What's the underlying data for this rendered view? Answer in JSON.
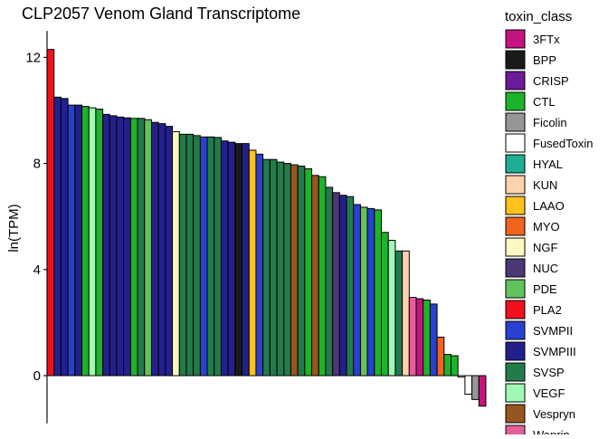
{
  "chart_data": {
    "type": "bar",
    "title": "CLP2057 Venom Gland Transcriptome",
    "xlabel": "",
    "ylabel": "ln(TPM)",
    "ylim": [
      -1.8,
      13
    ],
    "yticks": [
      0,
      4,
      8,
      12
    ],
    "grid": false,
    "legend": {
      "title": "toxin_class",
      "placement": "right",
      "entries": [
        {
          "label": "3FTx",
          "color": "#C6127F"
        },
        {
          "label": "BPP",
          "color": "#1A1A1A"
        },
        {
          "label": "CRISP",
          "color": "#6A1B9A"
        },
        {
          "label": "CTL",
          "color": "#1DB32B"
        },
        {
          "label": "Ficolin",
          "color": "#969696"
        },
        {
          "label": "FusedToxin",
          "color": "#FFFFFF"
        },
        {
          "label": "HYAL",
          "color": "#1FAE93"
        },
        {
          "label": "KUN",
          "color": "#FFD2AE"
        },
        {
          "label": "LAAO",
          "color": "#FFC21A"
        },
        {
          "label": "MYO",
          "color": "#F0641C"
        },
        {
          "label": "NGF",
          "color": "#FFF8C2"
        },
        {
          "label": "NUC",
          "color": "#4B3875"
        },
        {
          "label": "PDE",
          "color": "#61C45B"
        },
        {
          "label": "PLA2",
          "color": "#F0101E"
        },
        {
          "label": "SVMPII",
          "color": "#2741D1"
        },
        {
          "label": "SVMPIII",
          "color": "#23208E"
        },
        {
          "label": "SVSP",
          "color": "#237B4C"
        },
        {
          "label": "VEGF",
          "color": "#A1F7B5"
        },
        {
          "label": "Vespryn",
          "color": "#97561F"
        },
        {
          "label": "Waprin",
          "color": "#E45F9D"
        }
      ]
    },
    "series": [
      {
        "values": [
          {
            "class": "PLA2",
            "value": 12.3
          },
          {
            "class": "SVMPIII",
            "value": 10.5
          },
          {
            "class": "SVMPIII",
            "value": 10.45
          },
          {
            "class": "SVMPII",
            "value": 10.2
          },
          {
            "class": "SVMPIII",
            "value": 10.2
          },
          {
            "class": "CTL",
            "value": 10.15
          },
          {
            "class": "VEGF",
            "value": 10.1
          },
          {
            "class": "CTL",
            "value": 10.05
          },
          {
            "class": "SVMPIII",
            "value": 9.85
          },
          {
            "class": "SVMPIII",
            "value": 9.8
          },
          {
            "class": "SVMPIII",
            "value": 9.75
          },
          {
            "class": "SVMPIII",
            "value": 9.72
          },
          {
            "class": "CTL",
            "value": 9.7
          },
          {
            "class": "SVSP",
            "value": 9.7
          },
          {
            "class": "PDE",
            "value": 9.65
          },
          {
            "class": "SVMPIII",
            "value": 9.55
          },
          {
            "class": "SVMPIII",
            "value": 9.5
          },
          {
            "class": "SVMPIII",
            "value": 9.4
          },
          {
            "class": "NGF",
            "value": 9.2
          },
          {
            "class": "SVSP",
            "value": 9.1
          },
          {
            "class": "SVSP",
            "value": 9.1
          },
          {
            "class": "SVSP",
            "value": 9.05
          },
          {
            "class": "SVMPII",
            "value": 9.0
          },
          {
            "class": "SVSP",
            "value": 9.0
          },
          {
            "class": "SVSP",
            "value": 8.98
          },
          {
            "class": "SVMPIII",
            "value": 8.85
          },
          {
            "class": "SVMPIII",
            "value": 8.8
          },
          {
            "class": "BPP",
            "value": 8.75
          },
          {
            "class": "SVMPIII",
            "value": 8.75
          },
          {
            "class": "LAAO",
            "value": 8.5
          },
          {
            "class": "SVMPII",
            "value": 8.35
          },
          {
            "class": "SVSP",
            "value": 8.15
          },
          {
            "class": "SVSP",
            "value": 8.15
          },
          {
            "class": "SVSP",
            "value": 8.05
          },
          {
            "class": "SVSP",
            "value": 8.0
          },
          {
            "class": "Vespryn",
            "value": 7.95
          },
          {
            "class": "SVSP",
            "value": 7.9
          },
          {
            "class": "CTL",
            "value": 7.8
          },
          {
            "class": "Vespryn",
            "value": 7.55
          },
          {
            "class": "CTL",
            "value": 7.5
          },
          {
            "class": "SVSP",
            "value": 7.1
          },
          {
            "class": "NUC",
            "value": 6.9
          },
          {
            "class": "SVMPIII",
            "value": 6.8
          },
          {
            "class": "SVSP",
            "value": 6.75
          },
          {
            "class": "SVMPII",
            "value": 6.45
          },
          {
            "class": "PDE",
            "value": 6.35
          },
          {
            "class": "SVMPII",
            "value": 6.3
          },
          {
            "class": "CTL",
            "value": 6.25
          },
          {
            "class": "CTL",
            "value": 5.4
          },
          {
            "class": "VEGF",
            "value": 5.1
          },
          {
            "class": "SVSP",
            "value": 4.7
          },
          {
            "class": "KUN",
            "value": 4.7
          },
          {
            "class": "Waprin",
            "value": 2.95
          },
          {
            "class": "3FTx",
            "value": 2.9
          },
          {
            "class": "CTL",
            "value": 2.85
          },
          {
            "class": "SVMPII",
            "value": 2.7
          },
          {
            "class": "MYO",
            "value": 1.45
          },
          {
            "class": "CTL",
            "value": 0.8
          },
          {
            "class": "CTL",
            "value": 0.75
          },
          {
            "class": "FusedToxin",
            "value": -0.05
          },
          {
            "class": "FusedToxin",
            "value": -0.7
          },
          {
            "class": "Ficolin",
            "value": -0.9
          },
          {
            "class": "3FTx",
            "value": -1.15
          }
        ]
      }
    ]
  }
}
